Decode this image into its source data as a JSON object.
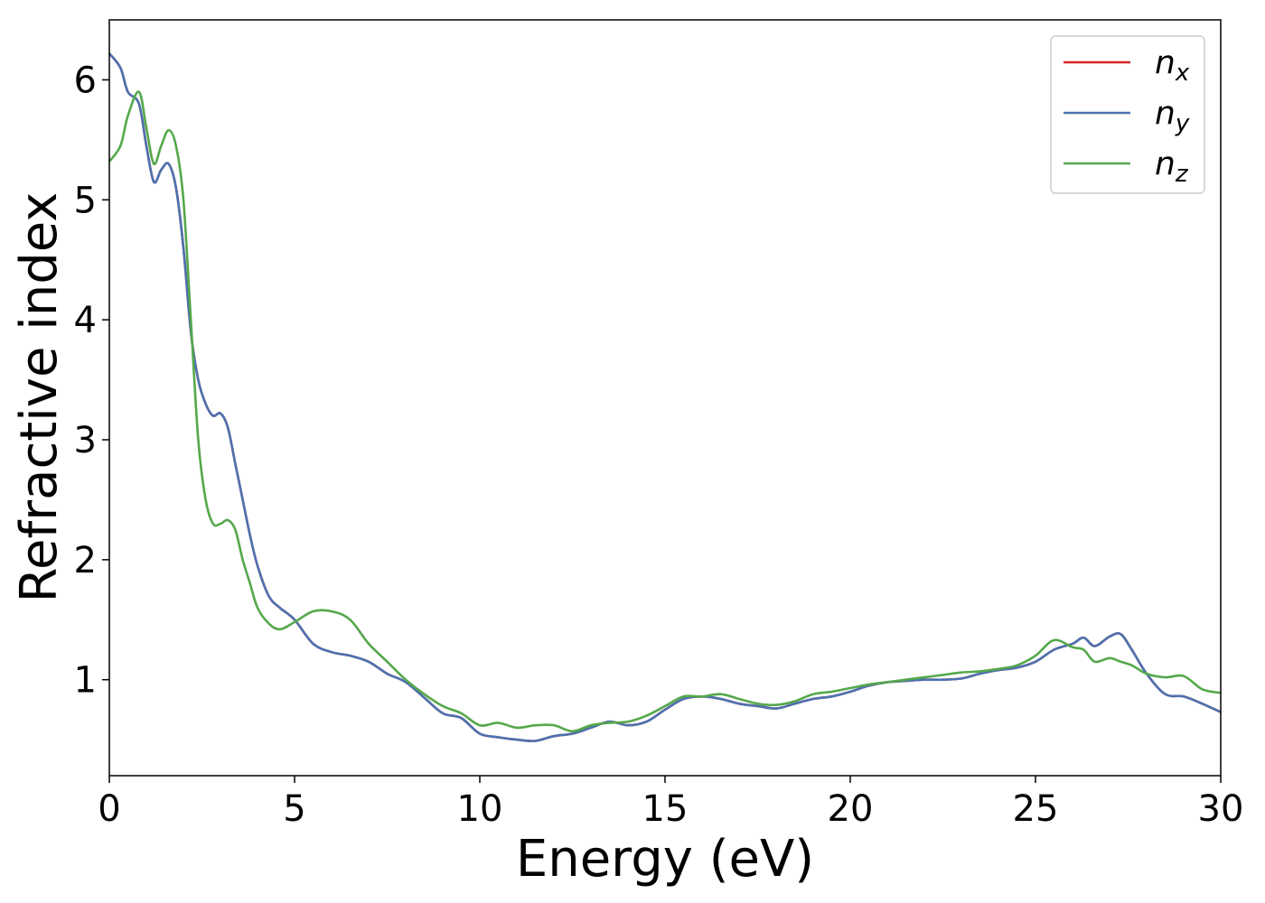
{
  "chart_data": {
    "type": "line",
    "title": "",
    "xlabel": "Energy (eV)",
    "ylabel": "Refractive index",
    "xlim": [
      0,
      30
    ],
    "ylim": [
      0.2,
      6.5
    ],
    "xticks": [
      0,
      5,
      10,
      15,
      20,
      25,
      30
    ],
    "yticks": [
      1,
      2,
      3,
      4,
      5,
      6
    ],
    "grid": false,
    "legend": {
      "position": "top-right"
    },
    "series": [
      {
        "name": "n",
        "sub": "x",
        "color": "#d62728",
        "x": [
          0,
          0.3,
          0.5,
          0.8,
          1.0,
          1.2,
          1.4,
          1.6,
          1.8,
          2.0,
          2.2,
          2.4,
          2.6,
          2.8,
          3.0,
          3.2,
          3.4,
          3.6,
          3.8,
          4.0,
          4.3,
          4.6,
          5.0,
          5.5,
          6.0,
          6.5,
          7.0,
          7.5,
          8.0,
          8.5,
          9.0,
          9.5,
          10.0,
          10.5,
          11.0,
          11.5,
          12.0,
          12.5,
          13.0,
          13.5,
          14.0,
          14.5,
          15.0,
          15.5,
          16.0,
          16.5,
          17.0,
          17.5,
          18.0,
          18.5,
          19.0,
          19.5,
          20.0,
          20.5,
          21.0,
          21.5,
          22.0,
          22.5,
          23.0,
          23.5,
          24.0,
          24.5,
          25.0,
          25.5,
          26.0,
          26.3,
          26.6,
          27.0,
          27.3,
          27.6,
          28.0,
          28.5,
          29.0,
          29.5,
          30.0
        ],
        "y": [
          6.22,
          6.1,
          5.9,
          5.8,
          5.45,
          5.15,
          5.25,
          5.3,
          5.1,
          4.6,
          3.9,
          3.5,
          3.3,
          3.2,
          3.22,
          3.1,
          2.8,
          2.5,
          2.2,
          1.95,
          1.7,
          1.6,
          1.5,
          1.3,
          1.23,
          1.2,
          1.15,
          1.05,
          0.98,
          0.85,
          0.72,
          0.68,
          0.55,
          0.52,
          0.5,
          0.49,
          0.53,
          0.55,
          0.6,
          0.65,
          0.62,
          0.65,
          0.75,
          0.84,
          0.86,
          0.84,
          0.8,
          0.78,
          0.76,
          0.8,
          0.84,
          0.86,
          0.9,
          0.95,
          0.98,
          0.99,
          1.0,
          1.0,
          1.01,
          1.05,
          1.08,
          1.1,
          1.15,
          1.25,
          1.3,
          1.35,
          1.28,
          1.36,
          1.38,
          1.25,
          1.05,
          0.88,
          0.86,
          0.8,
          0.73
        ]
      },
      {
        "name": "n",
        "sub": "y",
        "color": "#4c72b0",
        "x": [
          0,
          0.3,
          0.5,
          0.8,
          1.0,
          1.2,
          1.4,
          1.6,
          1.8,
          2.0,
          2.2,
          2.4,
          2.6,
          2.8,
          3.0,
          3.2,
          3.4,
          3.6,
          3.8,
          4.0,
          4.3,
          4.6,
          5.0,
          5.5,
          6.0,
          6.5,
          7.0,
          7.5,
          8.0,
          8.5,
          9.0,
          9.5,
          10.0,
          10.5,
          11.0,
          11.5,
          12.0,
          12.5,
          13.0,
          13.5,
          14.0,
          14.5,
          15.0,
          15.5,
          16.0,
          16.5,
          17.0,
          17.5,
          18.0,
          18.5,
          19.0,
          19.5,
          20.0,
          20.5,
          21.0,
          21.5,
          22.0,
          22.5,
          23.0,
          23.5,
          24.0,
          24.5,
          25.0,
          25.5,
          26.0,
          26.3,
          26.6,
          27.0,
          27.3,
          27.6,
          28.0,
          28.5,
          29.0,
          29.5,
          30.0
        ],
        "y": [
          6.22,
          6.1,
          5.9,
          5.8,
          5.45,
          5.15,
          5.25,
          5.3,
          5.1,
          4.6,
          3.9,
          3.5,
          3.3,
          3.2,
          3.22,
          3.1,
          2.8,
          2.5,
          2.2,
          1.95,
          1.7,
          1.6,
          1.5,
          1.3,
          1.23,
          1.2,
          1.15,
          1.05,
          0.98,
          0.85,
          0.72,
          0.68,
          0.55,
          0.52,
          0.5,
          0.49,
          0.53,
          0.55,
          0.6,
          0.65,
          0.62,
          0.65,
          0.75,
          0.84,
          0.86,
          0.84,
          0.8,
          0.78,
          0.76,
          0.8,
          0.84,
          0.86,
          0.9,
          0.95,
          0.98,
          0.99,
          1.0,
          1.0,
          1.01,
          1.05,
          1.08,
          1.1,
          1.15,
          1.25,
          1.3,
          1.35,
          1.28,
          1.36,
          1.38,
          1.25,
          1.05,
          0.88,
          0.86,
          0.8,
          0.73
        ]
      },
      {
        "name": "n",
        "sub": "z",
        "color": "#55a84b",
        "x": [
          0,
          0.3,
          0.5,
          0.8,
          1.0,
          1.2,
          1.4,
          1.6,
          1.8,
          2.0,
          2.2,
          2.4,
          2.6,
          2.8,
          3.0,
          3.2,
          3.4,
          3.6,
          3.8,
          4.0,
          4.3,
          4.6,
          5.0,
          5.5,
          6.0,
          6.5,
          7.0,
          7.5,
          8.0,
          8.5,
          9.0,
          9.5,
          10.0,
          10.5,
          11.0,
          11.5,
          12.0,
          12.5,
          13.0,
          13.5,
          14.0,
          14.5,
          15.0,
          15.5,
          16.0,
          16.5,
          17.0,
          17.5,
          18.0,
          18.5,
          19.0,
          19.5,
          20.0,
          20.5,
          21.0,
          21.5,
          22.0,
          22.5,
          23.0,
          23.5,
          24.0,
          24.5,
          25.0,
          25.5,
          26.0,
          26.3,
          26.6,
          27.0,
          27.3,
          27.6,
          28.0,
          28.5,
          29.0,
          29.5,
          30.0
        ],
        "y": [
          5.32,
          5.45,
          5.7,
          5.9,
          5.6,
          5.3,
          5.45,
          5.58,
          5.45,
          5.0,
          4.0,
          3.0,
          2.5,
          2.3,
          2.3,
          2.33,
          2.25,
          2.0,
          1.8,
          1.6,
          1.47,
          1.42,
          1.48,
          1.57,
          1.57,
          1.5,
          1.3,
          1.15,
          1.0,
          0.88,
          0.78,
          0.72,
          0.62,
          0.64,
          0.6,
          0.62,
          0.62,
          0.57,
          0.62,
          0.64,
          0.65,
          0.7,
          0.78,
          0.86,
          0.86,
          0.88,
          0.84,
          0.8,
          0.79,
          0.82,
          0.88,
          0.9,
          0.93,
          0.96,
          0.98,
          1.0,
          1.02,
          1.04,
          1.06,
          1.07,
          1.09,
          1.12,
          1.2,
          1.33,
          1.27,
          1.25,
          1.15,
          1.18,
          1.15,
          1.12,
          1.05,
          1.02,
          1.03,
          0.92,
          0.89
        ]
      }
    ]
  }
}
